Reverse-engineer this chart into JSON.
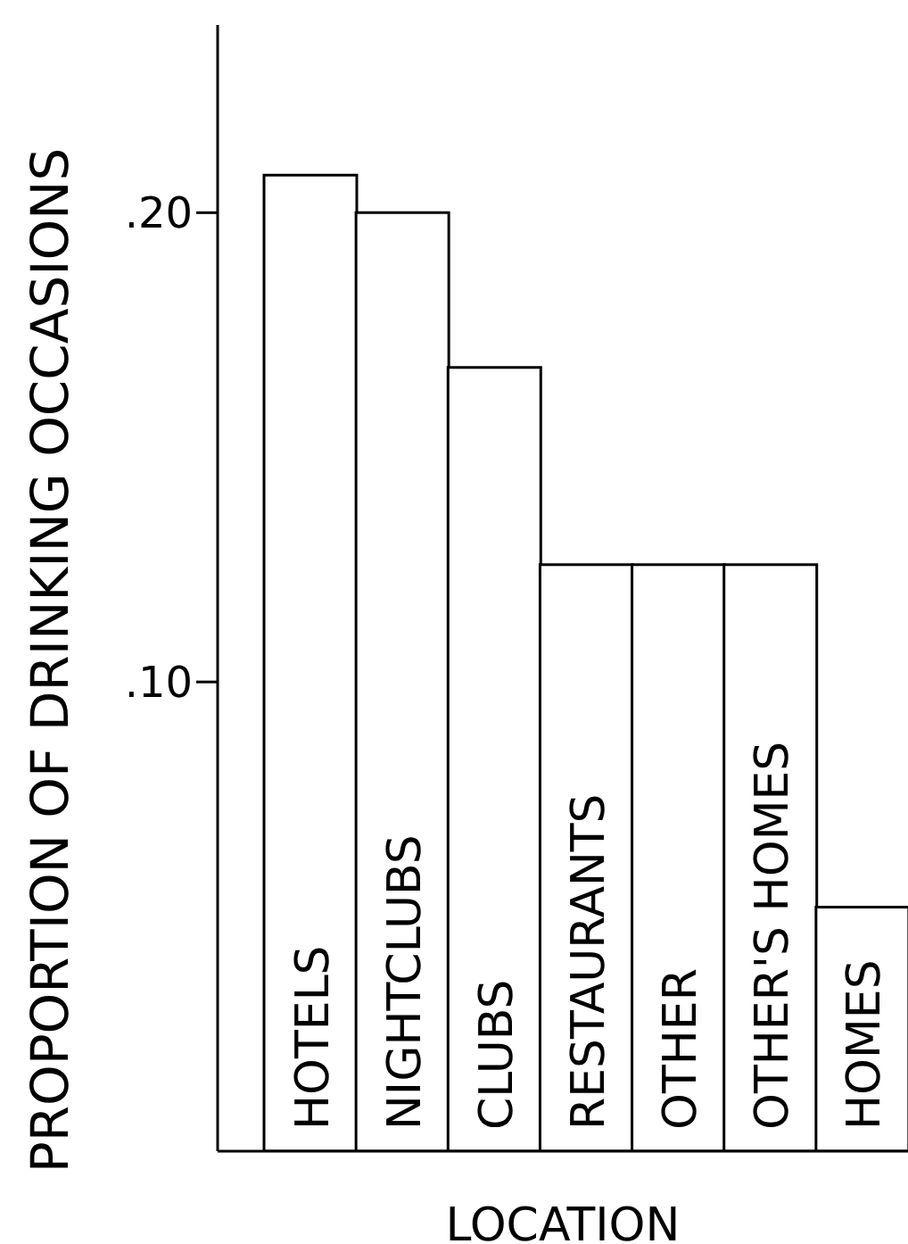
{
  "chart_data": {
    "type": "bar",
    "ylabel": "PROPORTION  OF DRINKING OCCASIONS",
    "xlabel": "LOCATION",
    "categories": [
      "HOTELS",
      "NIGHTCLUBS",
      "CLUBS",
      "RESTAURANTS",
      "OTHER",
      "OTHER'S HOMES",
      "HOMES"
    ],
    "values": [
      0.208,
      0.2,
      0.167,
      0.125,
      0.125,
      0.125,
      0.052
    ],
    "color": "#ffffff",
    "ylim": [
      0,
      0.24
    ],
    "yticks": [
      {
        "value": 0.1,
        "label": ".10"
      },
      {
        "value": 0.2,
        "label": ".20"
      }
    ],
    "grid": false
  }
}
